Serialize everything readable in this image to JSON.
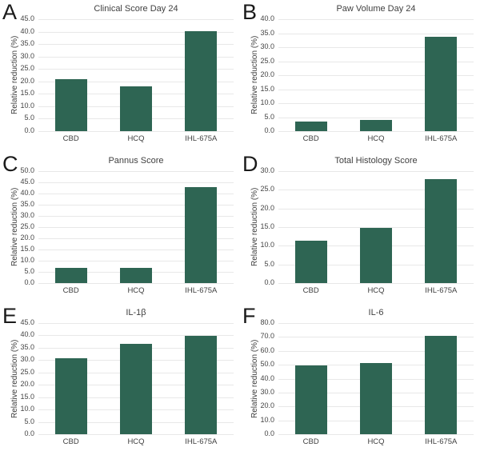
{
  "figure": {
    "ylabel": "Relative reduction (%)",
    "categories": [
      "CBD",
      "HCQ",
      "IHL-675A"
    ],
    "bar_color": "#2E6553",
    "gridline_color": "#E8E8E8",
    "text_color": "#3F3F3F"
  },
  "chart_data": [
    {
      "type": "bar",
      "letter": "A",
      "title": "Clinical Score Day 24",
      "categories": [
        "CBD",
        "HCQ",
        "IHL-675A"
      ],
      "values": [
        20.8,
        18.0,
        40.3
      ],
      "xlabel": "",
      "ylabel": "Relative reduction (%)",
      "ylim": [
        0,
        45
      ],
      "ystep": 5,
      "grid": true,
      "legend": false
    },
    {
      "type": "bar",
      "letter": "B",
      "title": "Paw Volume Day 24",
      "categories": [
        "CBD",
        "HCQ",
        "IHL-675A"
      ],
      "values": [
        3.5,
        4.0,
        33.8
      ],
      "xlabel": "",
      "ylabel": "Relative reduction (%)",
      "ylim": [
        0,
        40
      ],
      "ystep": 5,
      "grid": true,
      "legend": false
    },
    {
      "type": "bar",
      "letter": "C",
      "title": "Pannus Score",
      "categories": [
        "CBD",
        "HCQ",
        "IHL-675A"
      ],
      "values": [
        6.7,
        6.7,
        43.0
      ],
      "xlabel": "",
      "ylabel": "Relative reduction (%)",
      "ylim": [
        0,
        50
      ],
      "ystep": 5,
      "grid": true,
      "legend": false
    },
    {
      "type": "bar",
      "letter": "D",
      "title": "Total Histology Score",
      "categories": [
        "CBD",
        "HCQ",
        "IHL-675A"
      ],
      "values": [
        11.4,
        14.7,
        27.8
      ],
      "xlabel": "",
      "ylabel": "Relative reduction (%)",
      "ylim": [
        0,
        30
      ],
      "ystep": 5,
      "grid": true,
      "legend": false
    },
    {
      "type": "bar",
      "letter": "E",
      "title": "IL-1β",
      "categories": [
        "CBD",
        "HCQ",
        "IHL-675A"
      ],
      "values": [
        30.8,
        36.5,
        39.7
      ],
      "xlabel": "",
      "ylabel": "Relative reduction (%)",
      "ylim": [
        0,
        45
      ],
      "ystep": 5,
      "grid": true,
      "legend": false
    },
    {
      "type": "bar",
      "letter": "F",
      "title": "IL-6",
      "categories": [
        "CBD",
        "HCQ",
        "IHL-675A"
      ],
      "values": [
        49.5,
        51.0,
        71.0
      ],
      "xlabel": "",
      "ylabel": "Relative reduction (%)",
      "ylim": [
        0,
        80
      ],
      "ystep": 10,
      "grid": true,
      "legend": false
    }
  ]
}
